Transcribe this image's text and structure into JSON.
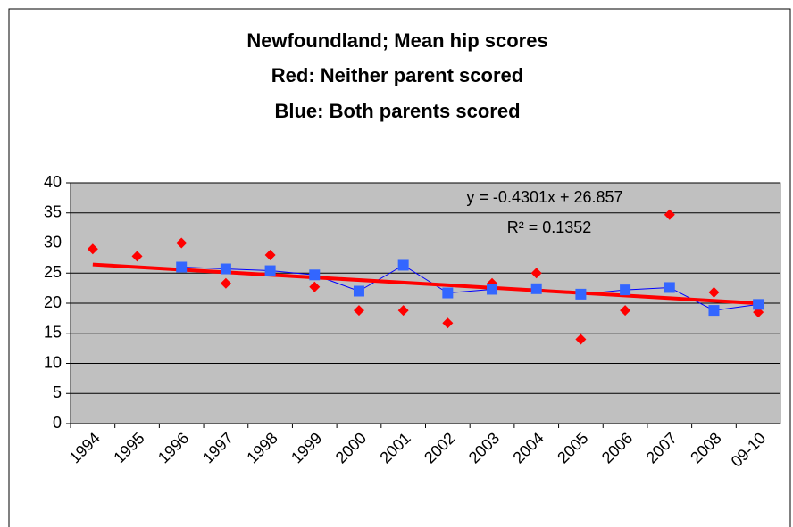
{
  "chart_data": {
    "type": "scatter-line",
    "title": "Newfoundland; Mean hip scores",
    "categories": [
      "1994",
      "1995",
      "1996",
      "1997",
      "1998",
      "1999",
      "2000",
      "2001",
      "2002",
      "2003",
      "2004",
      "2005",
      "2006",
      "2007",
      "2008",
      "09-10"
    ],
    "series": [
      {
        "label": "Red: Neither parent scored",
        "color": "#ff0000",
        "marker": "diamond",
        "values": [
          29,
          27.8,
          30,
          23.3,
          28,
          22.7,
          18.8,
          18.8,
          16.7,
          23.3,
          25,
          14,
          18.8,
          34.7,
          21.8,
          18.5
        ]
      },
      {
        "label": "Blue: Both parents scored",
        "color": "#3366ff",
        "line_color": "#0000ff",
        "marker": "square",
        "values": [
          null,
          null,
          26,
          25.7,
          25.4,
          24.7,
          22,
          26.3,
          21.7,
          22.3,
          22.4,
          21.5,
          22.2,
          22.6,
          18.8,
          19.8
        ]
      }
    ],
    "trendline": {
      "color": "#ff0000",
      "slope": -0.4301,
      "intercept": 26.857,
      "label": "y = -0.4301x + 26.857",
      "r2_label": "R² = 0.1352"
    },
    "ylim": [
      0,
      40
    ],
    "yticks": [
      0,
      5,
      10,
      15,
      20,
      25,
      30,
      35,
      40
    ],
    "grid": true,
    "plot_background": "#c0c0c0"
  }
}
